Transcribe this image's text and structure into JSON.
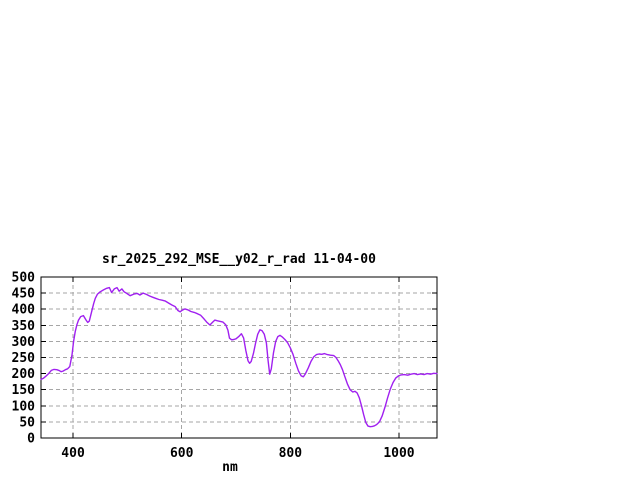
{
  "page": {
    "background": "#FFFFFF"
  },
  "chart_data": {
    "type": "line",
    "title": "sr_2025_292_MSE__y02_r_rad 11-04-00",
    "xlabel": "nm",
    "ylabel": "",
    "xlim": [
      341,
      1070
    ],
    "ylim": [
      0,
      500
    ],
    "x_ticks": [
      400,
      600,
      800,
      1000
    ],
    "y_ticks": [
      0,
      50,
      100,
      150,
      200,
      250,
      300,
      350,
      400,
      450,
      500
    ],
    "grid": true,
    "legend_position": "none",
    "styling": {
      "line_color": "#A020F0",
      "grid_color": "#A6A6A6",
      "frame_color": "#000000",
      "text_color": "#000000",
      "background": "#FFFFFF"
    },
    "series": [
      {
        "name": "sr_2025_292_MSE__y02_r_rad",
        "x": [
          341,
          345,
          350,
          355,
          360,
          365,
          370,
          374,
          378,
          382,
          386,
          390,
          394,
          398,
          401,
          404,
          407,
          410,
          414,
          419,
          424,
          427,
          430,
          435,
          438,
          441,
          445,
          450,
          456,
          462,
          467,
          471,
          476,
          481,
          485,
          490,
          494,
          499,
          505,
          512,
          518,
          523,
          529,
          535,
          541,
          547,
          552,
          558,
          564,
          570,
          576,
          582,
          588,
          593,
          597,
          601,
          606,
          611,
          617,
          623,
          629,
          635,
          641,
          646,
          652,
          657,
          661,
          666,
          671,
          676,
          681,
          685,
          688,
          692,
          696,
          700,
          705,
          710,
          714,
          718,
          722,
          725,
          728,
          732,
          736,
          740,
          744,
          748,
          752,
          756,
          759,
          762,
          765,
          769,
          773,
          777,
          781,
          785,
          790,
          795,
          800,
          805,
          810,
          815,
          820,
          824,
          828,
          833,
          838,
          843,
          848,
          853,
          858,
          863,
          868,
          874,
          880,
          884,
          888,
          892,
          896,
          900,
          905,
          910,
          915,
          919,
          923,
          927,
          931,
          935,
          939,
          943,
          947,
          951,
          955,
          959,
          964,
          969,
          974,
          979,
          984,
          989,
          994,
          999,
          1004,
          1010,
          1016,
          1022,
          1028,
          1034,
          1040,
          1046,
          1052,
          1058,
          1064,
          1070
        ],
        "y": [
          182,
          185,
          192,
          200,
          210,
          213,
          212,
          210,
          206,
          208,
          212,
          215,
          222,
          258,
          300,
          330,
          352,
          366,
          377,
          380,
          366,
          359,
          363,
          398,
          418,
          434,
          447,
          454,
          460,
          465,
          467,
          452,
          463,
          467,
          456,
          463,
          454,
          449,
          442,
          447,
          449,
          444,
          450,
          446,
          441,
          437,
          434,
          430,
          428,
          425,
          419,
          413,
          408,
          396,
          392,
          397,
          401,
          398,
          393,
          390,
          386,
          381,
          370,
          360,
          351,
          360,
          366,
          364,
          362,
          360,
          352,
          335,
          310,
          305,
          306,
          308,
          315,
          324,
          311,
          272,
          240,
          232,
          238,
          262,
          295,
          322,
          336,
          333,
          322,
          295,
          240,
          198,
          215,
          265,
          300,
          315,
          319,
          314,
          306,
          296,
          280,
          260,
          232,
          208,
          193,
          190,
          200,
          218,
          238,
          252,
          259,
          261,
          260,
          262,
          259,
          257,
          256,
          250,
          240,
          228,
          212,
          192,
          168,
          150,
          143,
          145,
          140,
          125,
          100,
          72,
          48,
          37,
          35,
          36,
          38,
          42,
          50,
          68,
          95,
          125,
          152,
          172,
          186,
          193,
          196,
          197,
          195,
          198,
          200,
          197,
          199,
          197,
          200,
          198,
          201,
          200
        ]
      }
    ]
  }
}
